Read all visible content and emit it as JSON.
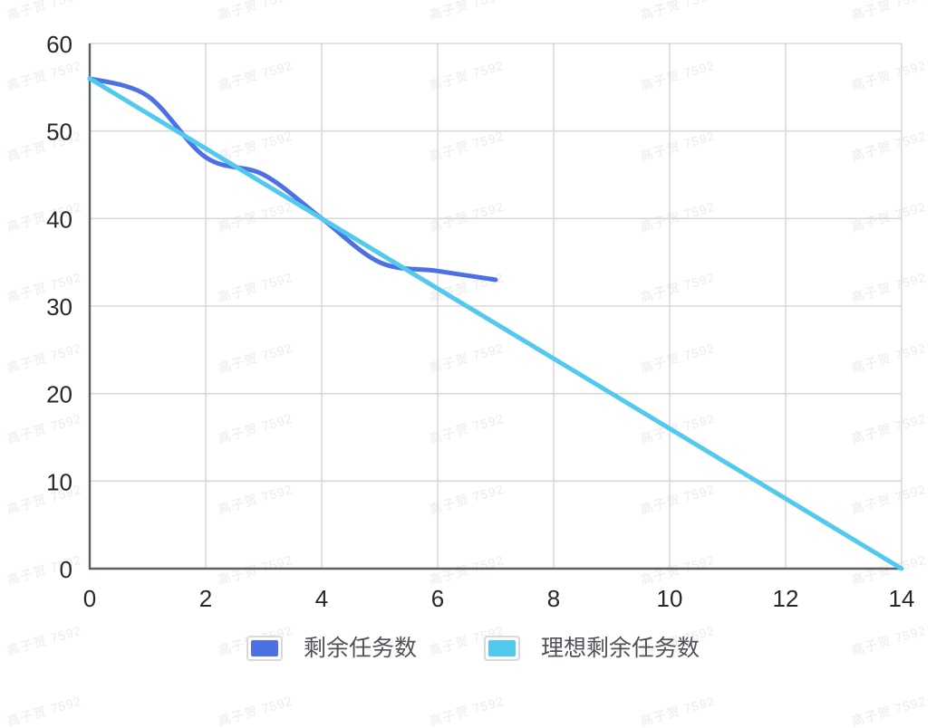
{
  "watermark": {
    "text": "高子贺 7592"
  },
  "chart_data": {
    "type": "line",
    "title": "",
    "xlabel": "",
    "ylabel": "",
    "xlim": [
      0,
      14
    ],
    "ylim": [
      0,
      60
    ],
    "x_ticks": [
      0,
      2,
      4,
      6,
      8,
      10,
      12,
      14
    ],
    "y_ticks": [
      0,
      10,
      20,
      30,
      40,
      50,
      60
    ],
    "grid": true,
    "legend_position": "bottom",
    "series": [
      {
        "name": "剩余任务数",
        "color": "#4d71e5",
        "smooth": true,
        "x": [
          0,
          1,
          2,
          3,
          4,
          5,
          6,
          7
        ],
        "values": [
          56,
          54,
          47,
          45,
          40,
          35,
          34,
          33
        ]
      },
      {
        "name": "理想剩余任务数",
        "color": "#52c9ef",
        "smooth": false,
        "x": [
          0,
          14
        ],
        "values": [
          56,
          0
        ]
      }
    ],
    "colors": {
      "grid_line": "#d8d8da",
      "axis_line": "#5b5f66",
      "tick_label": "#26282c",
      "legend_text": "#4f5357"
    }
  }
}
